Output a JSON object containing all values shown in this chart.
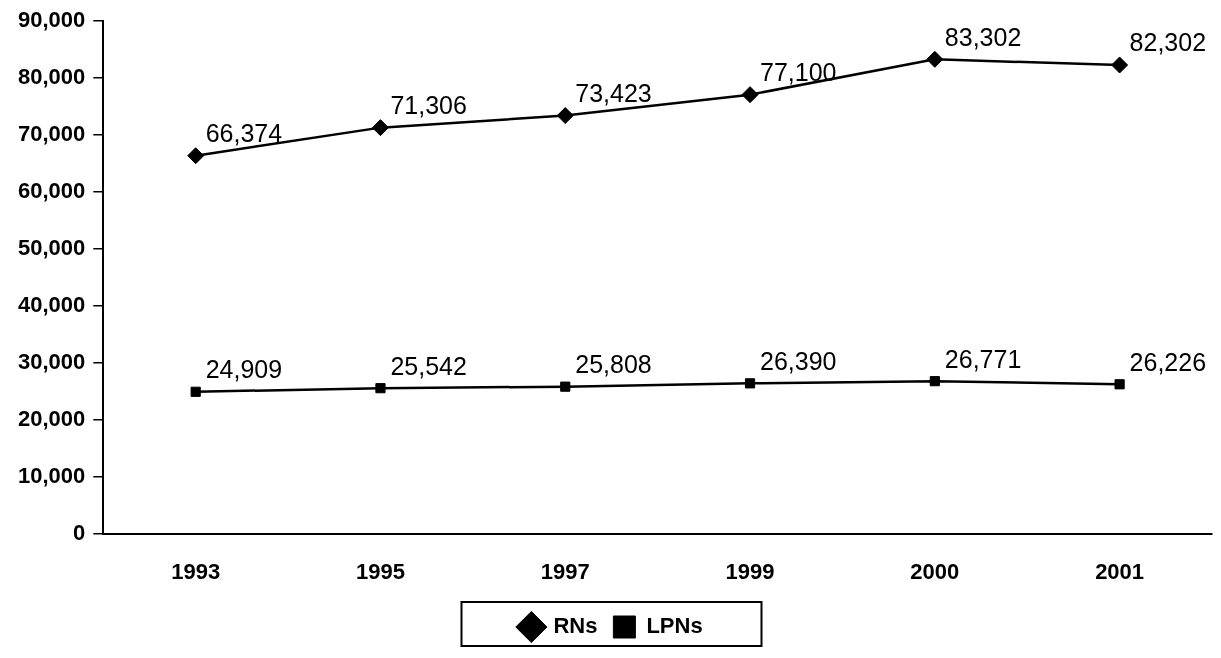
{
  "chart_data": {
    "type": "line",
    "categories": [
      "1993",
      "1995",
      "1997",
      "1999",
      "2000",
      "2001"
    ],
    "series": [
      {
        "name": "RNs",
        "color": "#000000",
        "marker": "diamond",
        "values": [
          66374,
          71306,
          73423,
          77100,
          83302,
          82302
        ],
        "value_labels": [
          "66,374",
          "71,306",
          "73,423",
          "77,100",
          "83,302",
          "82,302"
        ]
      },
      {
        "name": "LPNs",
        "color": "#000000",
        "marker": "square",
        "values": [
          24909,
          25542,
          25808,
          26390,
          26771,
          26226
        ],
        "value_labels": [
          "24,909",
          "25,542",
          "25,808",
          "26,390",
          "26,771",
          "26,226"
        ]
      }
    ],
    "ylim": [
      0,
      90000
    ],
    "yticks": [
      {
        "value": 0,
        "label": "0"
      },
      {
        "value": 10000,
        "label": "10,000"
      },
      {
        "value": 20000,
        "label": "20,000"
      },
      {
        "value": 30000,
        "label": "30,000"
      },
      {
        "value": 40000,
        "label": "40,000"
      },
      {
        "value": 50000,
        "label": "50,000"
      },
      {
        "value": 60000,
        "label": "60,000"
      },
      {
        "value": 70000,
        "label": "70,000"
      },
      {
        "value": 80000,
        "label": "80,000"
      },
      {
        "value": 90000,
        "label": "90,000"
      }
    ],
    "grid": false,
    "legend": "bottom",
    "line_style": "solid"
  }
}
